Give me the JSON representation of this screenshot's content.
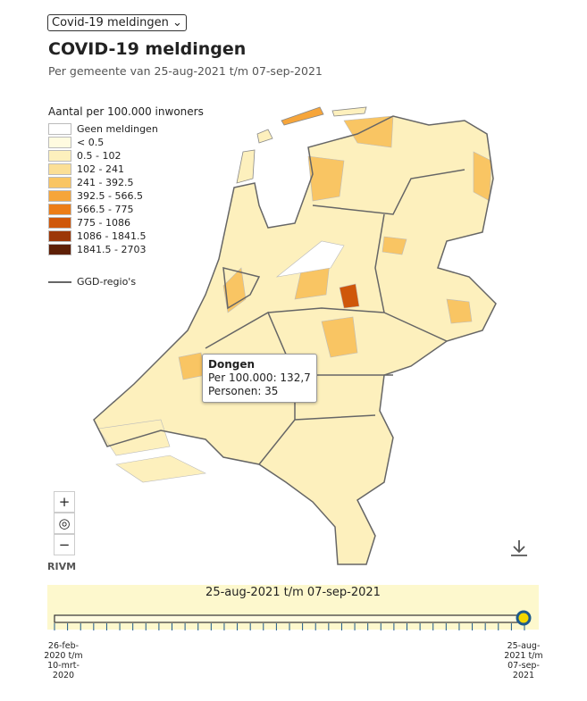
{
  "select": "Covid-19 meldingen",
  "header": {
    "title": "COVID-19 meldingen",
    "subtitle": "Per gemeente van 25-aug-2021 t/m 07-sep-2021"
  },
  "legend": {
    "title": "Aantal per 100.000 inwoners",
    "items": [
      {
        "label": "Geen meldingen",
        "color": "#ffffff"
      },
      {
        "label": "< 0.5",
        "color": "#fffbe0"
      },
      {
        "label": "0.5 - 102",
        "color": "#fdf0bd"
      },
      {
        "label": "102 - 241",
        "color": "#fbdf96"
      },
      {
        "label": "241 - 392.5",
        "color": "#f9c563"
      },
      {
        "label": "392.5 - 566.5",
        "color": "#f6a53a"
      },
      {
        "label": "566.5 - 775",
        "color": "#ec7d17"
      },
      {
        "label": "775 - 1086",
        "color": "#cf570a"
      },
      {
        "label": "1086 - 1841.5",
        "color": "#9c3708"
      },
      {
        "label": "1841.5 - 2703",
        "color": "#5e1f05"
      }
    ],
    "boundary": "GGD-regio's"
  },
  "tooltip": {
    "name": "Dongen",
    "lines": [
      "Per 100.000: 132,7",
      "Personen: 35"
    ]
  },
  "controls": {
    "zoom_in": "+",
    "reset": "◎",
    "zoom_out": "−"
  },
  "source": "RIVM",
  "timeline": {
    "label": "25-aug-2021 t/m 07-sep-2021",
    "start": "26-feb-2020 t/m 10-mrt-2020",
    "end": "25-aug-2021 t/m 07-sep-2021"
  }
}
